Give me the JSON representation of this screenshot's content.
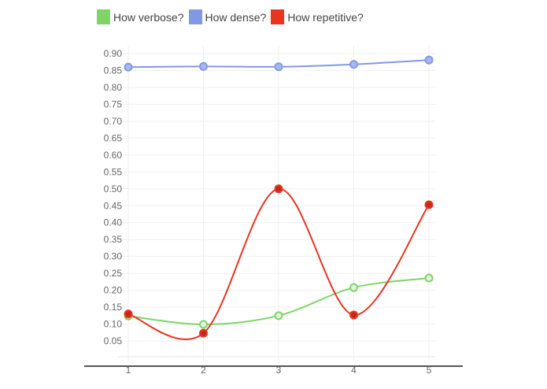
{
  "legend": {
    "items": [
      {
        "label": "How verbose?",
        "color": "#7fd36a"
      },
      {
        "label": "How dense?",
        "color": "#8199e5"
      },
      {
        "label": "How repetitive?",
        "color": "#e83520"
      }
    ]
  },
  "chart_data": {
    "type": "line",
    "title": "",
    "xlabel": "",
    "ylabel": "",
    "categories": [
      "1",
      "2",
      "3",
      "4",
      "5"
    ],
    "series": [
      {
        "name": "How verbose?",
        "color": "#7fd36a",
        "values": [
          0.124,
          0.099,
          0.125,
          0.208,
          0.236
        ]
      },
      {
        "name": "How dense?",
        "color": "#8199e5",
        "values": [
          0.86,
          0.862,
          0.861,
          0.868,
          0.881
        ]
      },
      {
        "name": "How repetitive?",
        "color": "#e83520",
        "values": [
          0.13,
          0.073,
          0.5,
          0.127,
          0.453
        ]
      }
    ],
    "y_ticks": [
      "0.05",
      "0.10",
      "0.15",
      "0.20",
      "0.25",
      "0.30",
      "0.35",
      "0.40",
      "0.45",
      "0.50",
      "0.55",
      "0.60",
      "0.65",
      "0.70",
      "0.75",
      "0.80",
      "0.85",
      "0.90"
    ],
    "ylim": [
      0,
      0.92
    ],
    "grid": true,
    "legend_position": "top",
    "curve": "smooth"
  }
}
